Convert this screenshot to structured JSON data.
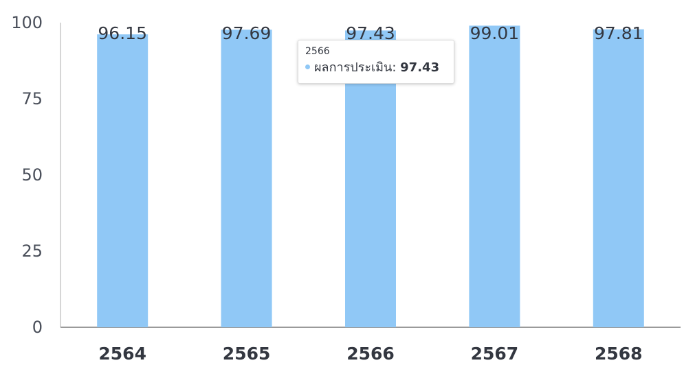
{
  "chart_data": {
    "type": "bar",
    "categories": [
      "2564",
      "2565",
      "2566",
      "2567",
      "2568"
    ],
    "values": [
      96.15,
      97.69,
      97.43,
      99.01,
      97.81
    ],
    "value_labels": [
      "96.15",
      "97.69",
      "97.43",
      "99.01",
      "97.81"
    ],
    "series": [
      {
        "name": "ผลการประเมิน",
        "values": [
          96.15,
          97.69,
          97.43,
          99.01,
          97.81
        ]
      }
    ],
    "title": "",
    "xlabel": "",
    "ylabel": "",
    "ylim": [
      0,
      100
    ],
    "yticks": [
      "0",
      "25",
      "50",
      "75",
      "100"
    ],
    "bar_color": "#90c8f6",
    "grid": false,
    "legend": "none"
  },
  "tooltip": {
    "title": "2566",
    "series_name": "ผลการประเมิน",
    "separator": ":",
    "value": "97.43",
    "dot_color": "#90c8f6"
  }
}
